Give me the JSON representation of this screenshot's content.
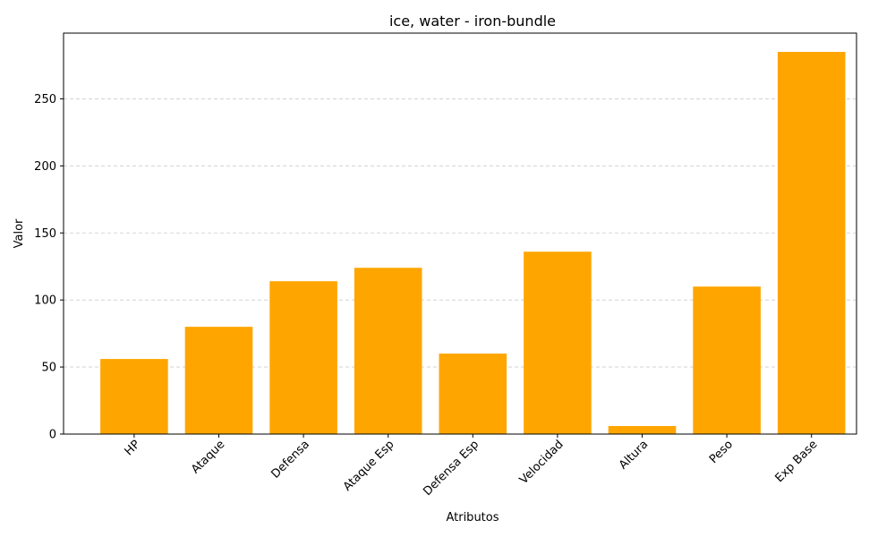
{
  "chart_data": {
    "type": "bar",
    "title": "ice, water - iron-bundle",
    "xlabel": "Atributos",
    "ylabel": "Valor",
    "categories": [
      "HP",
      "Ataque",
      "Defensa",
      "Ataque Esp",
      "Defensa Esp",
      "Velocidad",
      "Altura",
      "Peso",
      "Exp Base"
    ],
    "values": [
      56,
      80,
      114,
      124,
      60,
      136,
      6,
      110,
      285
    ],
    "ylim": [
      0,
      299
    ],
    "yticks": [
      0,
      50,
      100,
      150,
      200,
      250
    ],
    "grid": "y-dashed",
    "bar_color": "#FFA500"
  }
}
